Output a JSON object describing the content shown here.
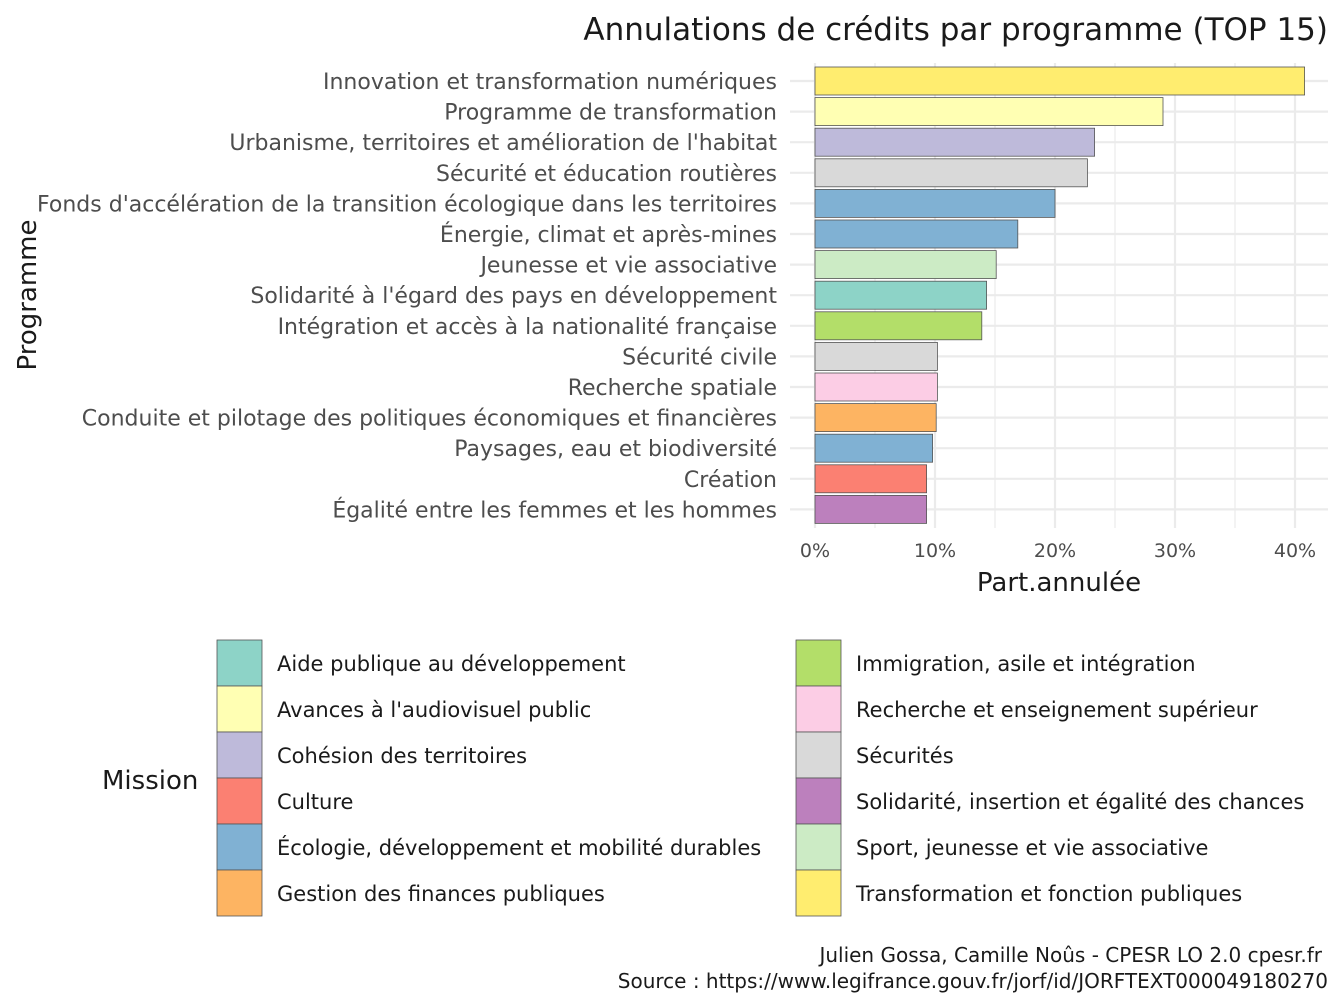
{
  "chart_data": {
    "type": "bar",
    "orientation": "horizontal",
    "title": "Annulations de crédits par programme (TOP 15)",
    "xlabel": "Part.annulée",
    "ylabel": "Programme",
    "xlim": [
      0,
      42
    ],
    "x_ticks": [
      0,
      10,
      20,
      30,
      40
    ],
    "x_tick_labels": [
      "0%",
      "10%",
      "20%",
      "30%",
      "40%"
    ],
    "grid": true,
    "legend_title": "Mission",
    "legend_position": "bottom",
    "categories": [
      "Innovation et transformation numériques",
      "Programme de transformation",
      "Urbanisme, territoires et amélioration de l'habitat",
      "Sécurité et éducation routières",
      "Fonds d'accélération de la transition écologique dans les territoires",
      "Énergie, climat et après-mines",
      "Jeunesse et vie associative",
      "Solidarité à l'égard des pays en développement",
      "Intégration et accès à la nationalité française",
      "Sécurité civile",
      "Recherche spatiale",
      "Conduite et pilotage des politiques économiques et financières",
      "Paysages, eau et biodiversité",
      "Création",
      "Égalité entre les femmes et les hommes"
    ],
    "values": [
      40.8,
      29.0,
      23.3,
      22.7,
      20.0,
      16.9,
      15.1,
      14.3,
      13.9,
      10.2,
      10.2,
      10.1,
      9.8,
      9.3,
      9.3
    ],
    "missions": [
      "Transformation et fonction publiques",
      "Avances à l'audiovisuel public",
      "Cohésion des territoires",
      "Sécurités",
      "Écologie, développement et mobilité durables",
      "Écologie, développement et mobilité durables",
      "Sport, jeunesse et vie associative",
      "Aide publique au développement",
      "Immigration, asile et intégration",
      "Sécurités",
      "Recherche et enseignement supérieur",
      "Gestion des finances publiques",
      "Écologie, développement et mobilité durables",
      "Culture",
      "Solidarité, insertion et égalité des chances"
    ],
    "legend": [
      {
        "name": "Aide publique au développement",
        "color": "#8DD3C7"
      },
      {
        "name": "Avances à l'audiovisuel public",
        "color": "#FFFFB3"
      },
      {
        "name": "Cohésion des territoires",
        "color": "#BEBADA"
      },
      {
        "name": "Culture",
        "color": "#FB8072"
      },
      {
        "name": "Écologie, développement et mobilité durables",
        "color": "#80B1D3"
      },
      {
        "name": "Gestion des finances publiques",
        "color": "#FDB462"
      },
      {
        "name": "Immigration, asile et intégration",
        "color": "#B3DE69"
      },
      {
        "name": "Recherche et enseignement supérieur",
        "color": "#FCCDE5"
      },
      {
        "name": "Sécurités",
        "color": "#D9D9D9"
      },
      {
        "name": "Solidarité, insertion et égalité des chances",
        "color": "#BC80BD"
      },
      {
        "name": "Sport, jeunesse et vie associative",
        "color": "#CCEBC5"
      },
      {
        "name": "Transformation et fonction publiques",
        "color": "#FFED6F"
      }
    ],
    "caption": [
      "Julien Gossa, Camille Noûs - CPESR LO 2.0 cpesr.fr",
      "Source : https://www.legifrance.gouv.fr/jorf/id/JORFTEXT000049180270"
    ]
  }
}
